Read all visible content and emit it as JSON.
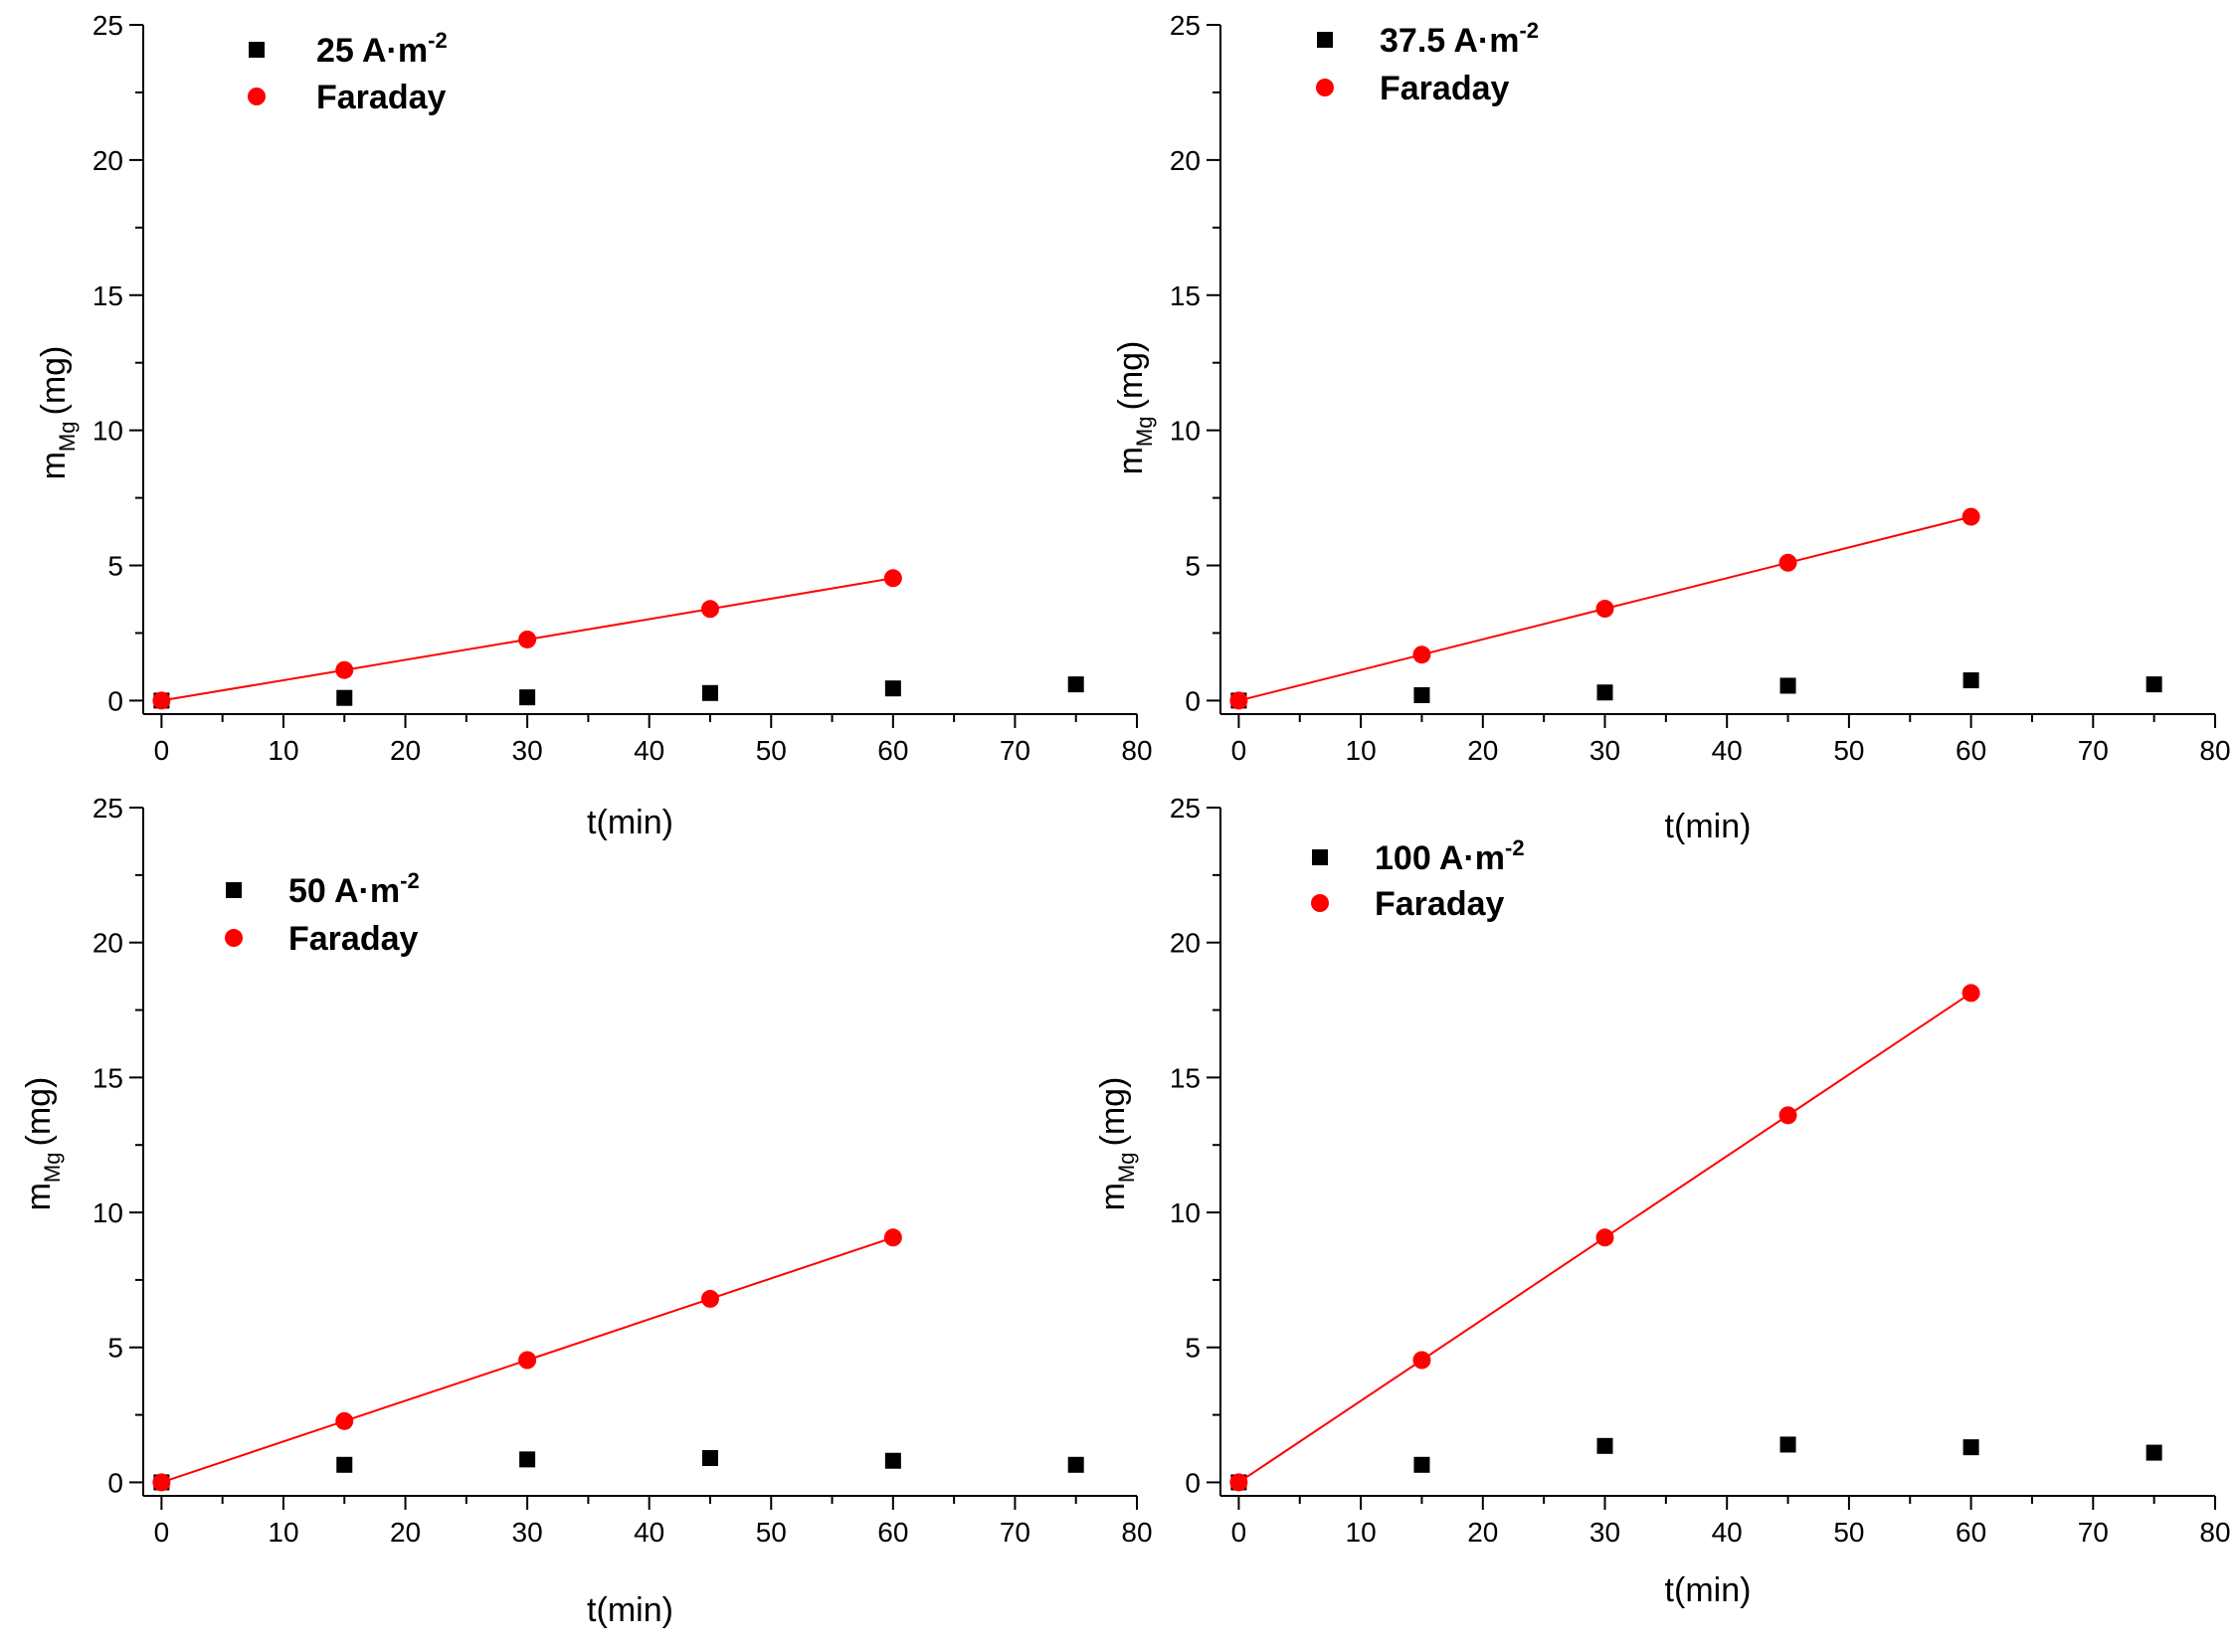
{
  "figure": {
    "panel_labels": [
      "25 A·m-2 panel",
      "37.5 A·m-2 panel",
      "50 A·m-2 panel",
      "100 A·m-2 panel"
    ]
  },
  "colors": {
    "measured": "#000000",
    "faraday": "#ff0000",
    "axis": "#000000"
  },
  "chart_data": [
    {
      "type": "scatter",
      "xlabel": "t(min)",
      "ylabel_main": "m",
      "ylabel_sub": "Mg",
      "ylabel_unit": "(mg)",
      "xlim": [
        -1.5,
        80
      ],
      "ylim": [
        -0.5,
        25
      ],
      "xticks": [
        0,
        10,
        20,
        30,
        40,
        50,
        60,
        70,
        80
      ],
      "yticks": [
        0,
        5,
        10,
        15,
        20,
        25
      ],
      "series": [
        {
          "name": "25 A·m-2",
          "label_main": "25 A·m",
          "label_sup": "-2",
          "marker": "square",
          "x": [
            0,
            15,
            30,
            45,
            60,
            75
          ],
          "y": [
            0.0,
            0.1,
            0.12,
            0.28,
            0.45,
            0.6
          ]
        },
        {
          "name": "Faraday",
          "label_main": "Faraday",
          "label_sup": "",
          "marker": "circle",
          "line": true,
          "x": [
            0,
            15,
            30,
            45,
            60
          ],
          "y": [
            0.0,
            1.13,
            2.26,
            3.39,
            4.53
          ]
        }
      ]
    },
    {
      "type": "scatter",
      "xlabel": "t(min)",
      "ylabel_main": "m",
      "ylabel_sub": "Mg",
      "ylabel_unit": "(mg)",
      "xlim": [
        -1.5,
        80
      ],
      "ylim": [
        -0.5,
        25
      ],
      "xticks": [
        0,
        10,
        20,
        30,
        40,
        50,
        60,
        70,
        80
      ],
      "yticks": [
        0,
        5,
        10,
        15,
        20,
        25
      ],
      "series": [
        {
          "name": "37.5 A·m-2",
          "label_main": "37.5 A·m",
          "label_sup": "-2",
          "marker": "square",
          "x": [
            0,
            15,
            30,
            45,
            60,
            75
          ],
          "y": [
            0.0,
            0.2,
            0.3,
            0.55,
            0.75,
            0.6
          ]
        },
        {
          "name": "Faraday",
          "label_main": "Faraday",
          "label_sup": "",
          "marker": "circle",
          "line": true,
          "x": [
            0,
            15,
            30,
            45,
            60
          ],
          "y": [
            0.0,
            1.7,
            3.4,
            5.1,
            6.8
          ]
        }
      ]
    },
    {
      "type": "scatter",
      "xlabel": "t(min)",
      "ylabel_main": "m",
      "ylabel_sub": "Mg",
      "ylabel_unit": "(mg)",
      "xlim": [
        -1.5,
        80
      ],
      "ylim": [
        -0.5,
        25
      ],
      "xticks": [
        0,
        10,
        20,
        30,
        40,
        50,
        60,
        70,
        80
      ],
      "yticks": [
        0,
        5,
        10,
        15,
        20,
        25
      ],
      "series": [
        {
          "name": "50 A·m-2",
          "label_main": "50 A·m",
          "label_sup": "-2",
          "marker": "square",
          "x": [
            0,
            15,
            30,
            45,
            60,
            75
          ],
          "y": [
            0.0,
            0.65,
            0.85,
            0.9,
            0.8,
            0.65
          ]
        },
        {
          "name": "Faraday",
          "label_main": "Faraday",
          "label_sup": "",
          "marker": "circle",
          "line": true,
          "x": [
            0,
            15,
            30,
            45,
            60
          ],
          "y": [
            0.0,
            2.27,
            4.53,
            6.8,
            9.07
          ]
        }
      ]
    },
    {
      "type": "scatter",
      "xlabel": "t(min)",
      "ylabel_main": "m",
      "ylabel_sub": "Mg",
      "ylabel_unit": "(mg)",
      "xlim": [
        -1.5,
        80
      ],
      "ylim": [
        -0.5,
        25
      ],
      "xticks": [
        0,
        10,
        20,
        30,
        40,
        50,
        60,
        70,
        80
      ],
      "yticks": [
        0,
        5,
        10,
        15,
        20,
        25
      ],
      "series": [
        {
          "name": "100 A·m-2",
          "label_main": "100 A·m",
          "label_sup": "-2",
          "marker": "square",
          "x": [
            0,
            15,
            30,
            45,
            60,
            75
          ],
          "y": [
            0.0,
            0.65,
            1.35,
            1.4,
            1.3,
            1.1
          ]
        },
        {
          "name": "Faraday",
          "label_main": "Faraday",
          "label_sup": "",
          "marker": "circle",
          "line": true,
          "x": [
            0,
            15,
            30,
            45,
            60
          ],
          "y": [
            0.0,
            4.53,
            9.07,
            13.6,
            18.13
          ]
        }
      ]
    }
  ]
}
